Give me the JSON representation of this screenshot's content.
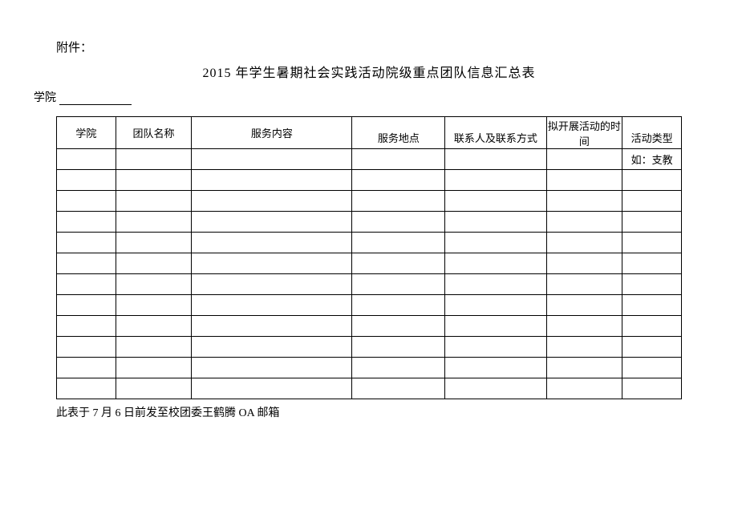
{
  "attachment_label": "附件：",
  "title": "2015 年学生暑期社会实践活动院级重点团队信息汇总表",
  "college_label": "学院",
  "table": {
    "headers": {
      "college": "学院",
      "team_name": "团队名称",
      "service_content": "服务内容",
      "service_location": "服务地点",
      "contact": "联系人及联系方式",
      "planned_time": "拟开展活动的时间",
      "activity_type": "活动类型"
    },
    "col_widths": {
      "college": 70,
      "team_name": 90,
      "service_content": 190,
      "service_location": 110,
      "contact": 120,
      "planned_time": 90,
      "activity_type": 70
    },
    "example_row": {
      "activity_type_example": "如：支教"
    },
    "empty_row_count": 11
  },
  "footnote": "此表于 7 月 6 日前发至校团委王鹤腾 OA 邮箱",
  "colors": {
    "text": "#000000",
    "background": "#ffffff",
    "border": "#000000"
  }
}
